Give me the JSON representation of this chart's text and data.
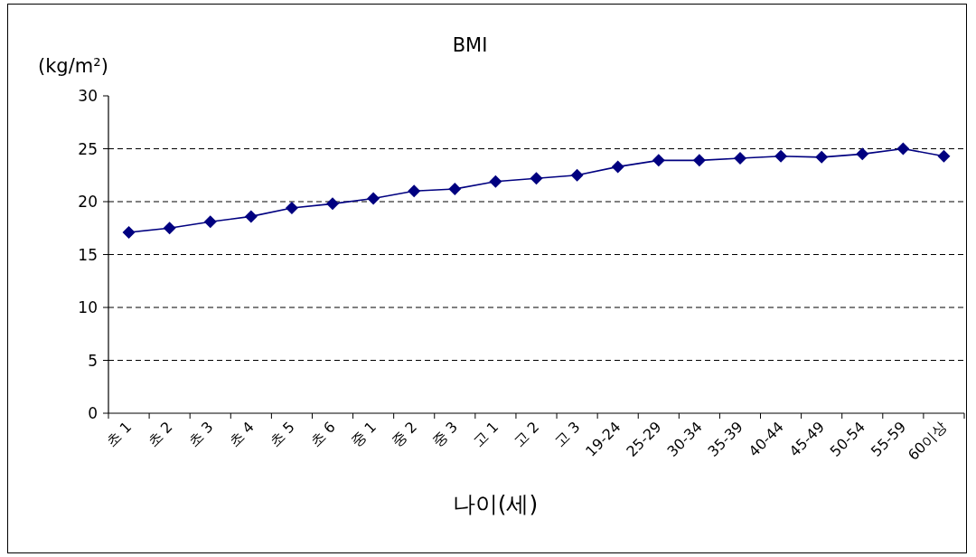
{
  "chart_data": {
    "type": "line",
    "title": "BMI",
    "ylabel": "(kg/m²)",
    "xlabel": "나이(세)",
    "categories": [
      "초 1",
      "초 2",
      "초 3",
      "초 4",
      "초 5",
      "초 6",
      "중 1",
      "중 2",
      "중 3",
      "고 1",
      "고 2",
      "고 3",
      "19-24",
      "25-29",
      "30-34",
      "35-39",
      "40-44",
      "45-49",
      "50-54",
      "55-59",
      "60이상"
    ],
    "series": [
      {
        "color": "#000080",
        "values": [
          17.1,
          17.5,
          18.1,
          18.6,
          19.4,
          19.8,
          20.3,
          21.0,
          21.2,
          21.9,
          22.2,
          22.5,
          23.3,
          23.9,
          23.9,
          24.1,
          24.3,
          24.2,
          24.5,
          25.0,
          24.3
        ]
      }
    ],
    "ylim": [
      0,
      30
    ],
    "yticks": [
      0,
      5,
      10,
      15,
      20,
      25,
      30
    ],
    "grid": "y",
    "marker": "diamond",
    "line_style": "solid"
  }
}
